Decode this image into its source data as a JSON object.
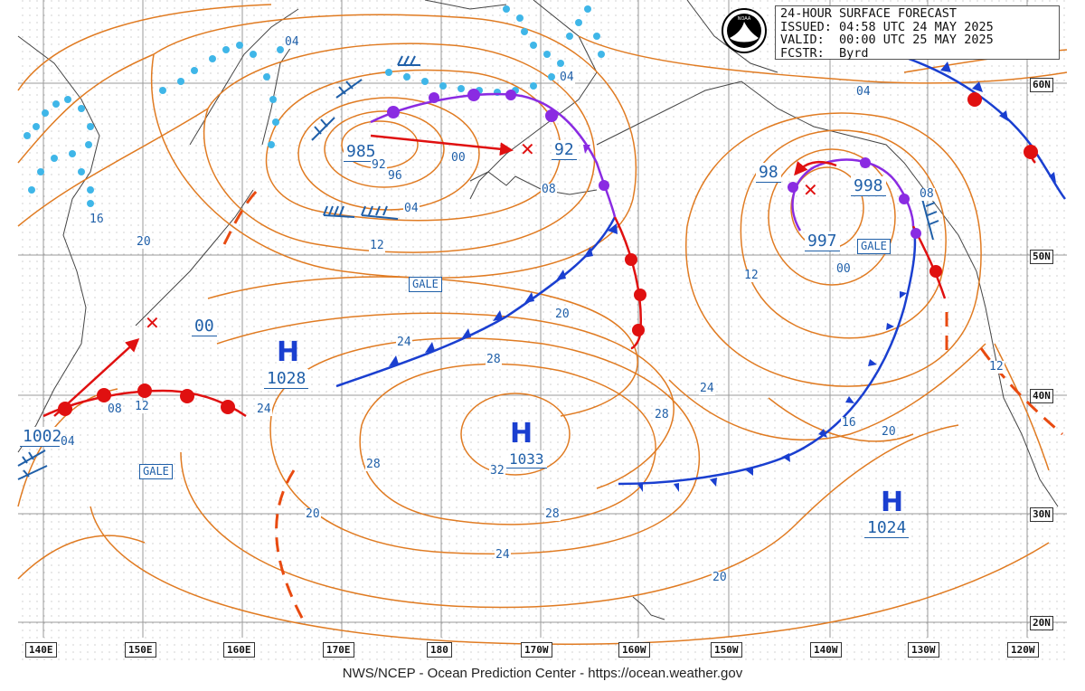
{
  "header": {
    "line1": "24-HOUR SURFACE FORECAST",
    "line2": "ISSUED: 04:58 UTC 24 MAY 2025",
    "line3": "VALID:  00:00 UTC 25 MAY 2025",
    "line4": "FCSTR:  Byrd",
    "logo_text": "NOAA"
  },
  "footer": "NWS/NCEP - Ocean Prediction Center - https://ocean.weather.gov",
  "longitude_labels": [
    "140E",
    "150E",
    "160E",
    "170E",
    "180",
    "170W",
    "160W",
    "150W",
    "140W",
    "130W",
    "120W"
  ],
  "latitude_labels": [
    "60N",
    "50N",
    "40N",
    "30N",
    "20N"
  ],
  "pressure_systems": [
    {
      "type": "H",
      "value": "1028"
    },
    {
      "type": "H",
      "value": "1033"
    },
    {
      "type": "H",
      "value": "1024"
    },
    {
      "type": "L",
      "value": "985"
    },
    {
      "type": "L",
      "value": "998"
    },
    {
      "type": "L",
      "value": "997"
    },
    {
      "type": "L",
      "value": "1002"
    }
  ],
  "forecast_lows": [
    "92",
    "98",
    "00"
  ],
  "gale_warnings": [
    "GALE",
    "GALE",
    "GALE"
  ],
  "isobar_labels": [
    "04",
    "04",
    "04",
    "04",
    "00",
    "00",
    "08",
    "08",
    "08",
    "12",
    "12",
    "12",
    "12",
    "16",
    "16",
    "20",
    "20",
    "20",
    "20",
    "20",
    "24",
    "24",
    "24",
    "24",
    "28",
    "28",
    "28",
    "28",
    "32",
    "92",
    "96",
    "04"
  ],
  "colors": {
    "isobar": "#e07b22",
    "cold_front": "#1a3fd0",
    "warm_front": "#e01010",
    "occluded_front": "#8a2be2",
    "ice_edge": "#3fb6e8",
    "labels": "#1f5fa8",
    "track": "#e01010"
  }
}
